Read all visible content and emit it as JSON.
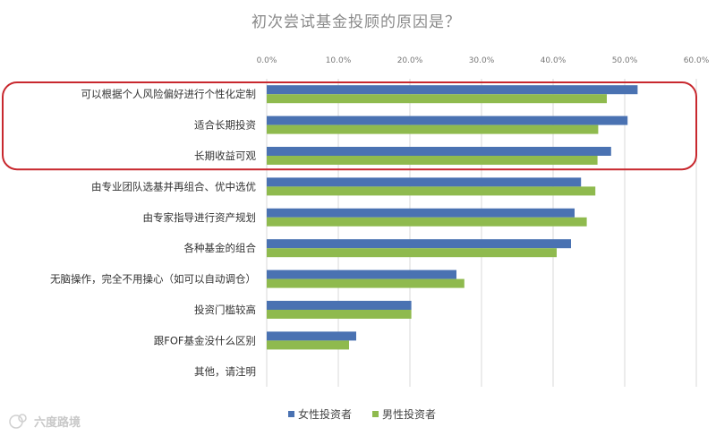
{
  "chart_data": {
    "type": "bar",
    "orientation": "horizontal",
    "title": "初次尝试基金投顾的原因是？",
    "xlim": [
      0,
      0.6
    ],
    "x_ticks": [
      0,
      0.1,
      0.2,
      0.3,
      0.4,
      0.5,
      0.6
    ],
    "x_tick_labels": [
      "0.0%",
      "10.0%",
      "20.0%",
      "30.0%",
      "40.0%",
      "50.0%",
      "60.0%"
    ],
    "grid": true,
    "legend_position": "bottom",
    "categories": [
      "可以根据个人风险偏好进行个性化定制",
      "适合长期投资",
      "长期收益可观",
      "由专业团队选基并再组合、优中选优",
      "由专家指导进行资产规划",
      "各种基金的组合",
      "无脑操作，完全不用操心（如可以自动调仓）",
      "投资门槛较高",
      "跟FOF基金没什么区别",
      "其他，请注明"
    ],
    "series": [
      {
        "name": "女性投资者",
        "color": "#4a72b2",
        "values": [
          0.518,
          0.504,
          0.481,
          0.439,
          0.43,
          0.425,
          0.265,
          0.202,
          0.125,
          0.0
        ]
      },
      {
        "name": "男性投资者",
        "color": "#8fba4e",
        "values": [
          0.475,
          0.463,
          0.462,
          0.459,
          0.447,
          0.405,
          0.276,
          0.202,
          0.115,
          0.0
        ]
      }
    ],
    "highlight": {
      "color": "#c8282e",
      "categories": [
        0,
        1,
        2
      ]
    }
  },
  "watermark": {
    "text": "六度路境"
  }
}
